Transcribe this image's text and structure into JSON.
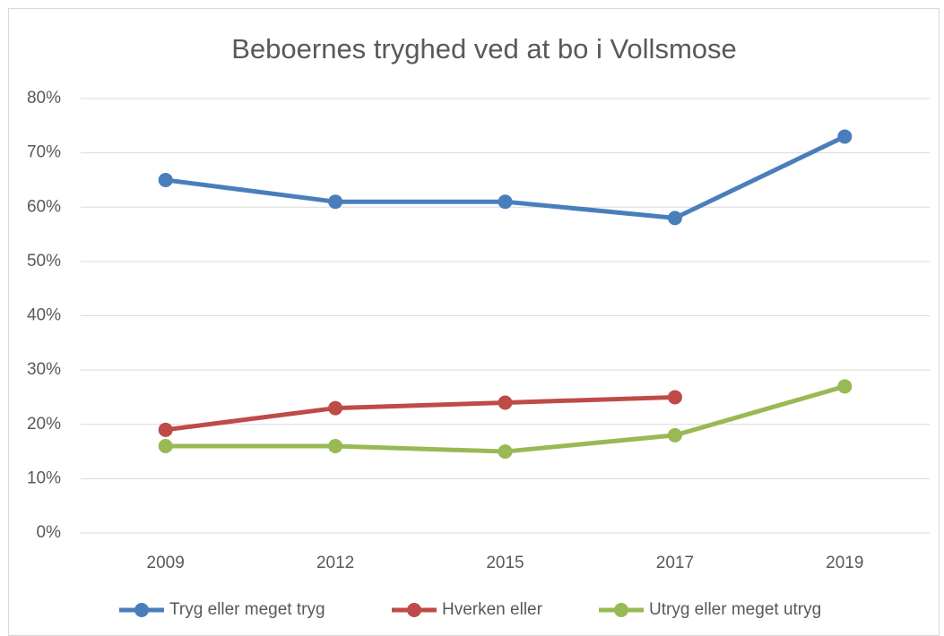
{
  "chart_data": {
    "type": "line",
    "title": "Beboernes tryghed ved at bo i Vollsmose",
    "categories": [
      "2009",
      "2012",
      "2015",
      "2017",
      "2019"
    ],
    "series": [
      {
        "name": "Tryg eller meget tryg",
        "color": "#4a7ebb",
        "values": [
          65,
          61,
          61,
          58,
          73
        ]
      },
      {
        "name": "Hverken eller",
        "color": "#be4b48",
        "values": [
          19,
          23,
          24,
          25,
          null
        ]
      },
      {
        "name": "Utryg eller meget utryg",
        "color": "#98b954",
        "values": [
          16,
          16,
          15,
          18,
          27
        ]
      }
    ],
    "ylim": [
      0,
      80
    ],
    "yticks": [
      {
        "value": 0,
        "label": "0%"
      },
      {
        "value": 10,
        "label": "10%"
      },
      {
        "value": 20,
        "label": "20%"
      },
      {
        "value": 30,
        "label": "30%"
      },
      {
        "value": 40,
        "label": "40%"
      },
      {
        "value": 50,
        "label": "50%"
      },
      {
        "value": 60,
        "label": "60%"
      },
      {
        "value": 70,
        "label": "70%"
      },
      {
        "value": 80,
        "label": "80%"
      }
    ],
    "grid": true,
    "legend": "bottom"
  }
}
